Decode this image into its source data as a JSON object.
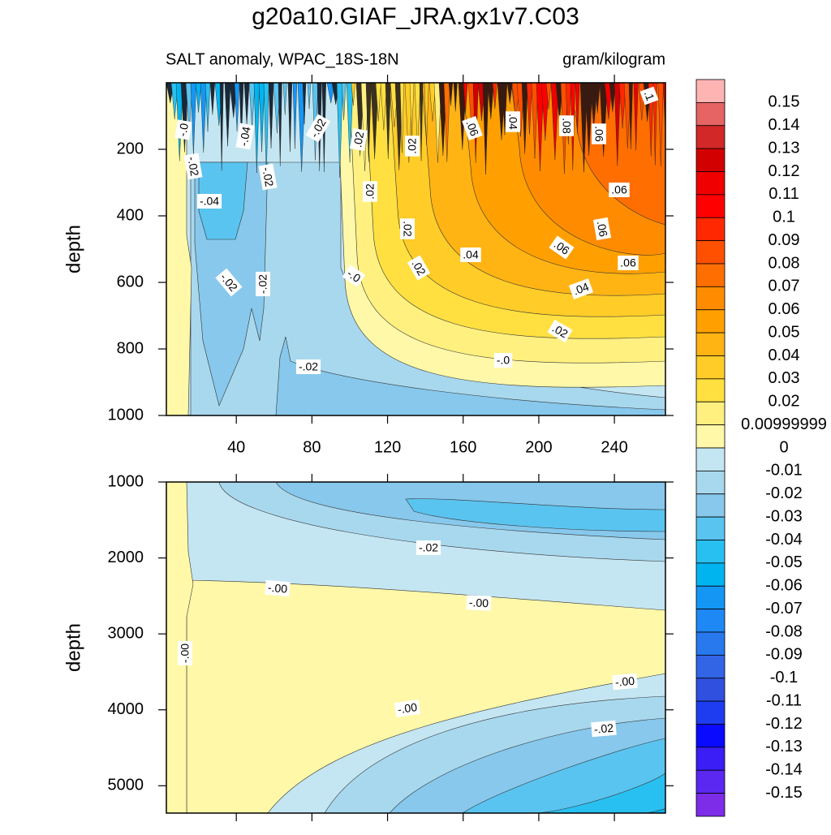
{
  "title": "g20a10.GIAF_JRA.gx1v7.C03",
  "subtitle_left": "SALT anomaly, WPAC_18S-18N",
  "subtitle_right": "gram/kilogram",
  "chart_data": [
    {
      "type": "contour",
      "ylabel": "depth",
      "xlim": [
        3,
        267
      ],
      "xticks": [
        40,
        80,
        120,
        160,
        200,
        240
      ],
      "ylim": [
        1000,
        0
      ],
      "yticks": [
        200,
        400,
        600,
        800,
        1000
      ],
      "contour_labels": [
        "-.0",
        "-.04",
        "-.02",
        ".02",
        ".02",
        ".06",
        ".04",
        ".08",
        ".06",
        ".1",
        "-.02",
        "-.02",
        "-.04",
        ".02",
        ".06",
        ".02",
        ".06",
        ".06",
        ".04",
        ".06",
        "-.02",
        "-.02",
        "-.0",
        ".02",
        ".04",
        ".02",
        "-.0",
        "-.02"
      ]
    },
    {
      "type": "contour",
      "ylabel": "depth",
      "xlim": [
        3,
        267
      ],
      "xticks": [
        40,
        80,
        120,
        160,
        200,
        240
      ],
      "ylim": [
        5360,
        1000
      ],
      "yticks": [
        1000,
        2000,
        3000,
        4000,
        5000
      ],
      "contour_labels": [
        "-.02",
        "-.00",
        "-.00",
        "-.00",
        "-.00",
        "-.00",
        "-.02"
      ]
    }
  ],
  "colorbar": {
    "levels": [
      0.15,
      0.14,
      0.13,
      0.12,
      0.11,
      0.1,
      0.09,
      0.08,
      0.07,
      0.06,
      0.05,
      0.04,
      0.03,
      0.02,
      0.00999999,
      0,
      -0.01,
      -0.02,
      -0.03,
      -0.04,
      -0.05,
      -0.06,
      -0.07,
      -0.08,
      -0.09,
      -0.1,
      -0.11,
      -0.12,
      -0.13,
      -0.14,
      -0.15
    ],
    "colors": [
      "#ffb4b4",
      "#e66464",
      "#d22828",
      "#d20000",
      "#f00000",
      "#ff0000",
      "#ff2800",
      "#ff5000",
      "#ff6e00",
      "#ff8c00",
      "#ffa000",
      "#ffb414",
      "#ffcc28",
      "#ffe040",
      "#fff080",
      "#fff8a8",
      "#c4e6f2",
      "#a8d8ee",
      "#87c8ec",
      "#5ac4f0",
      "#28c0f0",
      "#00b4f0",
      "#1496f5",
      "#1e88f5",
      "#2878ee",
      "#3264e6",
      "#3050e0",
      "#1e3cf0",
      "#0a0aff",
      "#3a1ef5",
      "#5a28f0",
      "#7d2ce8"
    ]
  }
}
